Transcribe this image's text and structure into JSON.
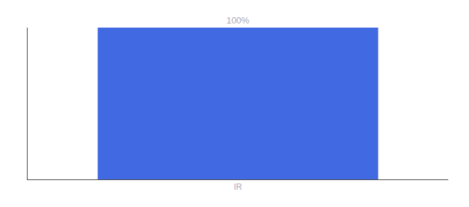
{
  "chart_data": {
    "type": "bar",
    "categories": [
      "IR"
    ],
    "values": [
      100
    ],
    "value_labels": [
      "100%"
    ],
    "data_labels": true,
    "color": "#4169e1",
    "ylim": [
      0,
      100
    ],
    "tick_labels": "x",
    "grid": false
  }
}
